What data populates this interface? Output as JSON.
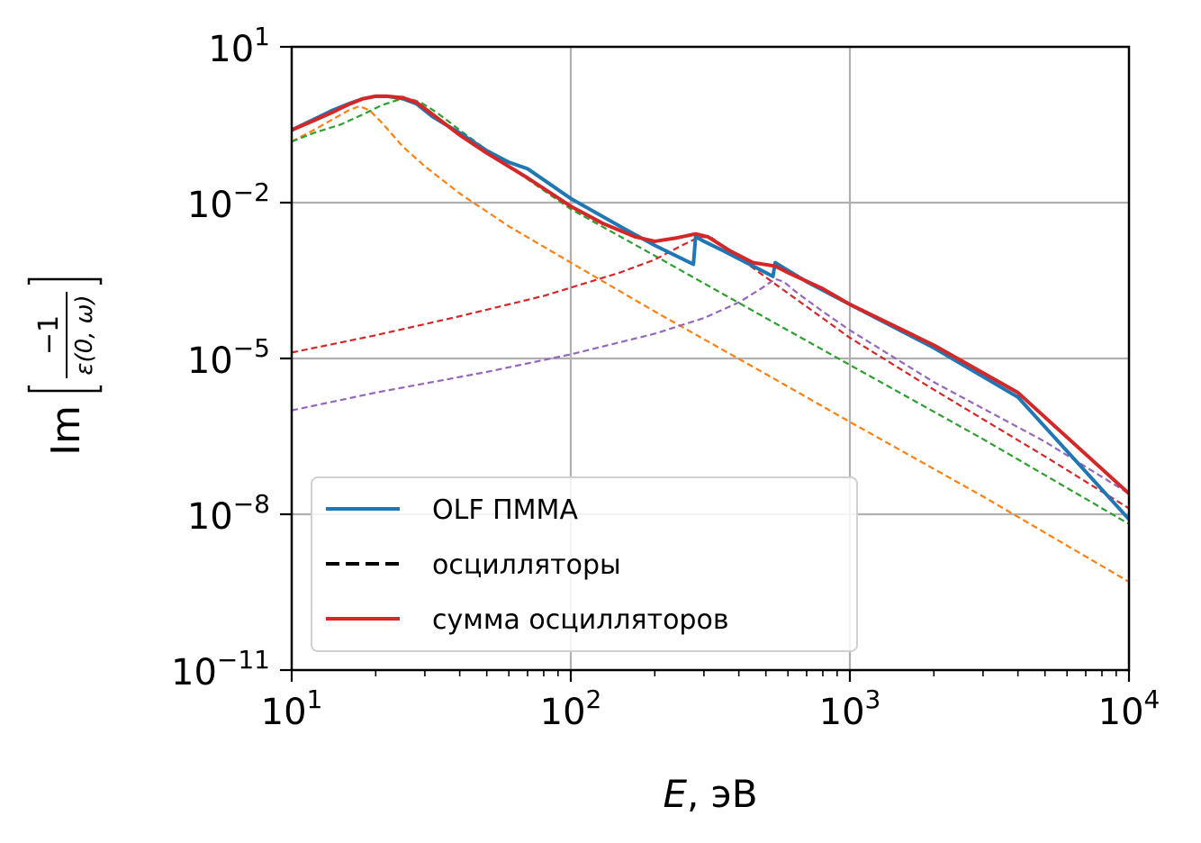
{
  "chart_data": {
    "type": "line",
    "xscale": "log",
    "yscale": "log",
    "xlim": [
      10,
      10000
    ],
    "ylim": [
      1e-11,
      10
    ],
    "grid": true,
    "legend_position": "lower-left",
    "xlabel_italic": "E",
    "xlabel_rest": ", эВ",
    "ylabel": "Im [−1/ε(0, ω)]",
    "ylabel_prefix": "Im",
    "ylabel_num": "−1",
    "ylabel_den": "ε(0, ω)",
    "xticks": [
      {
        "value": 10,
        "base": "10",
        "exp": "1"
      },
      {
        "value": 100,
        "base": "10",
        "exp": "2"
      },
      {
        "value": 1000,
        "base": "10",
        "exp": "3"
      },
      {
        "value": 10000,
        "base": "10",
        "exp": "4"
      }
    ],
    "yticks": [
      {
        "value": 10,
        "base": "10",
        "exp": "1"
      },
      {
        "value": 0.01,
        "base": "10",
        "exp": "−2"
      },
      {
        "value": 1e-05,
        "base": "10",
        "exp": "−5"
      },
      {
        "value": 1e-08,
        "base": "10",
        "exp": "−8"
      },
      {
        "value": 1e-11,
        "base": "10",
        "exp": "−11"
      }
    ],
    "legend": [
      {
        "label": "OLF ПММА",
        "color": "#1f77b4",
        "style": "solid"
      },
      {
        "label": "осцилляторы",
        "color": "#000000",
        "style": "dashed"
      },
      {
        "label": "сумма осцилляторов",
        "color": "#d62728",
        "style": "solid"
      }
    ],
    "series": [
      {
        "name": "OLF ПММА",
        "color": "#1f77b4",
        "style": "solid",
        "points": [
          [
            10,
            0.25
          ],
          [
            12,
            0.4
          ],
          [
            14,
            0.6
          ],
          [
            16,
            0.8
          ],
          [
            18,
            1.0
          ],
          [
            20,
            1.12
          ],
          [
            22,
            1.12
          ],
          [
            25,
            1.0
          ],
          [
            28,
            0.8
          ],
          [
            32,
            0.45
          ],
          [
            40,
            0.22
          ],
          [
            50,
            0.1
          ],
          [
            60,
            0.06
          ],
          [
            70,
            0.045
          ],
          [
            100,
            0.012
          ],
          [
            150,
            0.0035
          ],
          [
            200,
            0.0015
          ],
          [
            275,
            0.00065
          ],
          [
            280,
            0.0022
          ],
          [
            300,
            0.0018
          ],
          [
            350,
            0.0012
          ],
          [
            450,
            0.0006
          ],
          [
            530,
            0.00038
          ],
          [
            540,
            0.0007
          ],
          [
            700,
            0.0003
          ],
          [
            1000,
            0.00011
          ],
          [
            2000,
            1.6e-05
          ],
          [
            4000,
            1.8e-06
          ],
          [
            10000,
            8e-09
          ]
        ]
      },
      {
        "name": "сумма осцилляторов",
        "color": "#d62728",
        "style": "solid",
        "points": [
          [
            10,
            0.25
          ],
          [
            12,
            0.38
          ],
          [
            14,
            0.55
          ],
          [
            16,
            0.78
          ],
          [
            18,
            1.0
          ],
          [
            20,
            1.12
          ],
          [
            22,
            1.12
          ],
          [
            25,
            1.05
          ],
          [
            28,
            0.85
          ],
          [
            32,
            0.5
          ],
          [
            40,
            0.2
          ],
          [
            50,
            0.09
          ],
          [
            70,
            0.03
          ],
          [
            100,
            0.0085
          ],
          [
            130,
            0.004
          ],
          [
            170,
            0.0022
          ],
          [
            200,
            0.0018
          ],
          [
            240,
            0.0021
          ],
          [
            280,
            0.0025
          ],
          [
            310,
            0.0022
          ],
          [
            370,
            0.0012
          ],
          [
            450,
            0.0007
          ],
          [
            540,
            0.0006
          ],
          [
            600,
            0.00045
          ],
          [
            800,
            0.00022
          ],
          [
            1000,
            0.00011
          ],
          [
            2000,
            1.8e-05
          ],
          [
            4000,
            2.2e-06
          ],
          [
            10000,
            2.5e-08
          ]
        ]
      },
      {
        "name": "",
        "color": "#ff7f0e",
        "style": "dashed",
        "points": [
          [
            10,
            0.15
          ],
          [
            12,
            0.25
          ],
          [
            14,
            0.4
          ],
          [
            16,
            0.6
          ],
          [
            17.5,
            0.72
          ],
          [
            19,
            0.6
          ],
          [
            21,
            0.35
          ],
          [
            25,
            0.12
          ],
          [
            30,
            0.05
          ],
          [
            40,
            0.015
          ],
          [
            60,
            0.0035
          ],
          [
            100,
            0.0007
          ],
          [
            200,
            8e-05
          ],
          [
            500,
            5e-06
          ],
          [
            1000,
            6e-07
          ],
          [
            3000,
            2.2e-08
          ],
          [
            10000,
            5e-10
          ]
        ]
      },
      {
        "name": "",
        "color": "#2ca02c",
        "style": "dashed",
        "points": [
          [
            10,
            0.15
          ],
          [
            12,
            0.22
          ],
          [
            15,
            0.32
          ],
          [
            18,
            0.5
          ],
          [
            21,
            0.75
          ],
          [
            24,
            0.95
          ],
          [
            26.5,
            1.0
          ],
          [
            29,
            0.85
          ],
          [
            33,
            0.55
          ],
          [
            40,
            0.25
          ],
          [
            60,
            0.05
          ],
          [
            100,
            0.0075
          ],
          [
            200,
            0.00095
          ],
          [
            500,
            6e-05
          ],
          [
            1000,
            7.5e-06
          ],
          [
            3000,
            2.8e-07
          ],
          [
            10000,
            6.5e-09
          ]
        ]
      },
      {
        "name": "",
        "color": "#d62728",
        "style": "dashed",
        "points": [
          [
            10,
            1.3e-05
          ],
          [
            20,
            2.8e-05
          ],
          [
            40,
            6.5e-05
          ],
          [
            80,
            0.00016
          ],
          [
            150,
            0.00045
          ],
          [
            200,
            0.0008
          ],
          [
            250,
            0.0015
          ],
          [
            290,
            0.0022
          ],
          [
            320,
            0.0021
          ],
          [
            370,
            0.0012
          ],
          [
            450,
            0.00055
          ],
          [
            600,
            0.00018
          ],
          [
            1000,
            2.5e-05
          ],
          [
            2000,
            2.5e-06
          ],
          [
            5000,
            1.3e-07
          ],
          [
            10000,
            1.3e-08
          ]
        ]
      },
      {
        "name": "",
        "color": "#9467bd",
        "style": "dashed",
        "points": [
          [
            10,
            1e-06
          ],
          [
            20,
            2.2e-06
          ],
          [
            50,
            5.5e-06
          ],
          [
            100,
            1.2e-05
          ],
          [
            200,
            3e-05
          ],
          [
            300,
            6e-05
          ],
          [
            400,
            0.00012
          ],
          [
            480,
            0.00022
          ],
          [
            540,
            0.00034
          ],
          [
            580,
            0.0003
          ],
          [
            650,
            0.00018
          ],
          [
            800,
            8e-05
          ],
          [
            1000,
            3.5e-05
          ],
          [
            2000,
            3.5e-06
          ],
          [
            5000,
            2.5e-07
          ],
          [
            10000,
            2.5e-08
          ]
        ]
      }
    ]
  }
}
